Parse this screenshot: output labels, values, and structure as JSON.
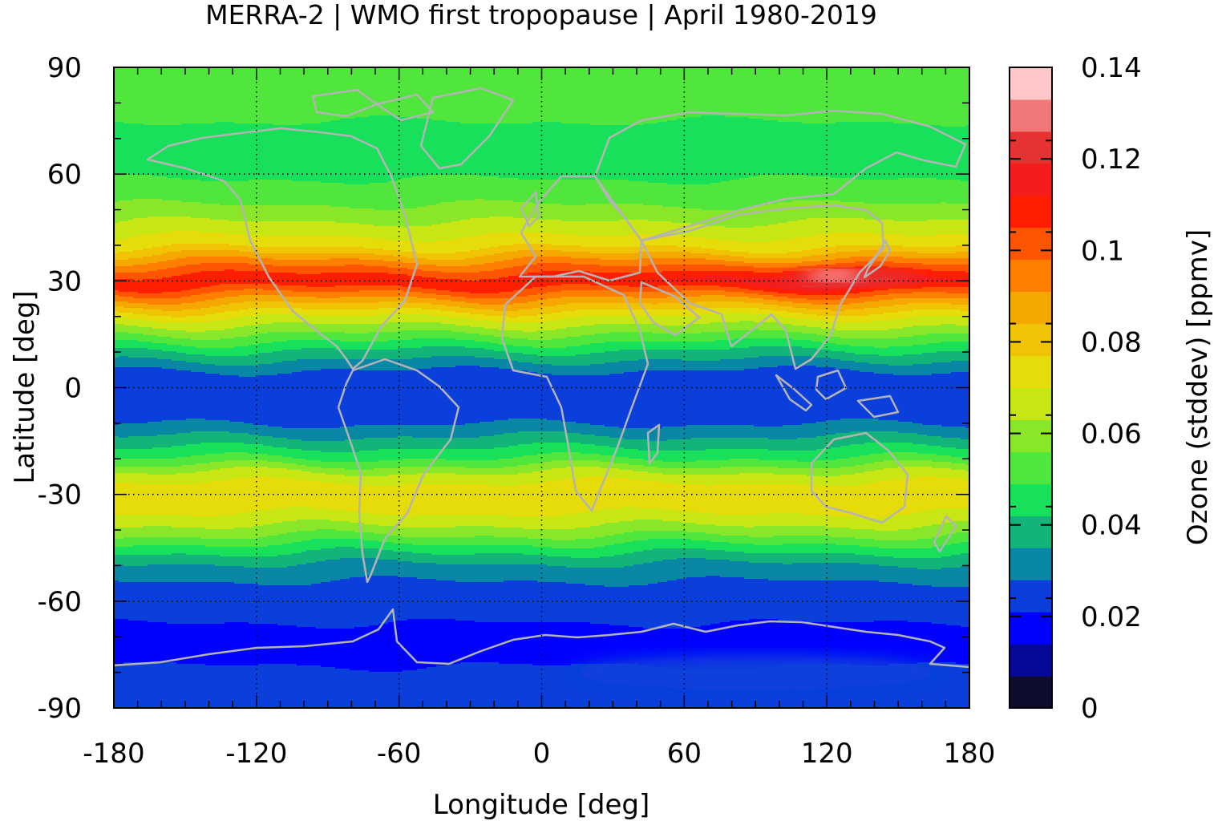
{
  "chart_data": {
    "type": "heatmap",
    "title": "MERRA-2 | WMO first tropopause | April 1980-2019",
    "xlabel": "Longitude [deg]",
    "ylabel": "Latitude [deg]",
    "colorbar_label": "Ozone (stddev) [ppmv]",
    "xlim": [
      -180,
      180
    ],
    "ylim": [
      -90,
      90
    ],
    "x_ticks": [
      -180,
      -120,
      -60,
      0,
      60,
      120,
      180
    ],
    "y_ticks": [
      90,
      60,
      30,
      0,
      -30,
      -60,
      -90
    ],
    "x_tick_labels": [
      "-180",
      "-120",
      "-60",
      "0",
      "60",
      "120",
      "180"
    ],
    "y_tick_labels": [
      "90",
      "60",
      "30",
      "0",
      "-30",
      "-60",
      "-90"
    ],
    "grid": true,
    "colorbar": {
      "vmin": 0,
      "vmax": 0.14,
      "step": 0.007,
      "tick_values": [
        0,
        0.02,
        0.04,
        0.06,
        0.08,
        0.1,
        0.12,
        0.14
      ],
      "tick_labels": [
        "0",
        "0.02",
        "0.04",
        "0.06",
        "0.08",
        "0.1",
        "0.12",
        "0.14"
      ],
      "colors": [
        "#0c0c2e",
        "#07089a",
        "#0000ff",
        "#0a3fdc",
        "#0a87a4",
        "#12b47a",
        "#18e05a",
        "#50e63c",
        "#8ae628",
        "#c8e614",
        "#e6dc0a",
        "#f0c405",
        "#f5a800",
        "#ff8000",
        "#ff5500",
        "#ff1e00",
        "#f51c1c",
        "#e63232",
        "#f07878",
        "#ffc8c8"
      ]
    },
    "zonal_profile": {
      "lat": [
        -90,
        -80,
        -75,
        -70,
        -65,
        -60,
        -55,
        -50,
        -45,
        -40,
        -35,
        -30,
        -25,
        -20,
        -15,
        -10,
        -5,
        0,
        5,
        10,
        15,
        20,
        25,
        30,
        35,
        40,
        45,
        50,
        55,
        60,
        65,
        70,
        75,
        80,
        90
      ],
      "value": [
        0.024,
        0.023,
        0.018,
        0.017,
        0.022,
        0.024,
        0.027,
        0.033,
        0.045,
        0.06,
        0.07,
        0.075,
        0.068,
        0.05,
        0.038,
        0.028,
        0.024,
        0.024,
        0.028,
        0.04,
        0.055,
        0.07,
        0.09,
        0.112,
        0.095,
        0.075,
        0.066,
        0.058,
        0.052,
        0.048,
        0.046,
        0.047,
        0.049,
        0.05,
        0.05
      ]
    },
    "colormap_description": "banded contour fill; blue at the poles and equator, green/yellow bands at mid-latitudes, red maximum along 30N with a peak above 0.12 near 120E",
    "overlay": "coastlines (gray)"
  }
}
